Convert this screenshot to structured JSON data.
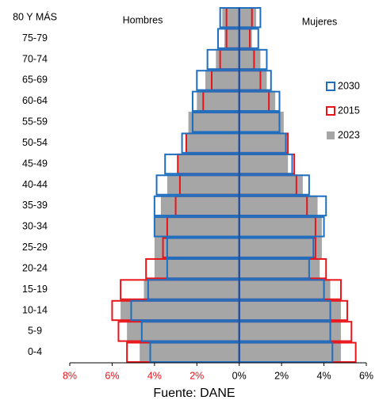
{
  "chart_data": {
    "type": "pyramid",
    "labels": {
      "left": "Hombres",
      "right": "Mujeres"
    },
    "source": "Fuente: DANE",
    "categories": [
      "80 Y MÁS",
      "75-79",
      "70-74",
      "65-69",
      "60-64",
      "55-59",
      "50-54",
      "45-49",
      "40-44",
      "35-39",
      "30-34",
      "25-29",
      "20-24",
      "15-19",
      "10-14",
      "5-9",
      "0-4"
    ],
    "series": [
      {
        "name": "2023",
        "color": "#a6a6a6",
        "style": "fill",
        "values_left": [
          -0.8,
          -0.7,
          -1.1,
          -1.6,
          -2.0,
          -2.4,
          -2.5,
          -2.9,
          -3.4,
          -3.7,
          -4.0,
          -4.0,
          -4.0,
          -4.5,
          -5.6,
          -5.3,
          -4.7
        ],
        "values_right": [
          0.8,
          0.6,
          1.0,
          1.3,
          1.7,
          2.1,
          2.3,
          2.3,
          3.0,
          3.7,
          3.9,
          3.9,
          3.8,
          4.3,
          4.8,
          4.8,
          4.8
        ]
      },
      {
        "name": "2015",
        "color": "#e8141a",
        "style": "outline",
        "values_left": [
          -0.6,
          -0.6,
          -0.9,
          -1.3,
          -1.7,
          -2.2,
          -2.5,
          -2.9,
          -2.8,
          -3.0,
          -3.4,
          -3.6,
          -4.4,
          -5.6,
          -6.0,
          -5.7,
          -5.3
        ],
        "values_right": [
          0.6,
          0.5,
          0.7,
          1.0,
          1.4,
          1.9,
          2.3,
          2.6,
          2.7,
          3.2,
          3.6,
          3.6,
          4.1,
          4.8,
          5.1,
          5.3,
          5.5
        ]
      },
      {
        "name": "2030",
        "color": "#1f6fc0",
        "style": "outline",
        "values_left": [
          -0.9,
          -1.0,
          -1.5,
          -2.0,
          -2.2,
          -2.2,
          -2.7,
          -3.5,
          -3.9,
          -4.0,
          -4.0,
          -3.4,
          -3.4,
          -4.3,
          -5.1,
          -4.6,
          -4.2
        ],
        "values_right": [
          1.0,
          0.9,
          1.3,
          1.5,
          1.9,
          1.9,
          2.2,
          2.5,
          3.3,
          4.1,
          4.0,
          3.5,
          3.3,
          4.0,
          4.3,
          4.3,
          4.4
        ]
      }
    ],
    "legend_order": [
      2,
      1,
      0
    ],
    "xlim": [
      -8,
      6
    ],
    "xticks": [
      {
        "value": -8,
        "label": "8%"
      },
      {
        "value": -6,
        "label": "6%"
      },
      {
        "value": -4,
        "label": "4%"
      },
      {
        "value": -2,
        "label": "2%"
      },
      {
        "value": 0,
        "label": "0%"
      },
      {
        "value": 2,
        "label": "2%"
      },
      {
        "value": 4,
        "label": "4%"
      },
      {
        "value": 6,
        "label": "6%"
      }
    ],
    "negative_tick_color": "#e8141a",
    "center_line_color": "#1f4e99"
  }
}
